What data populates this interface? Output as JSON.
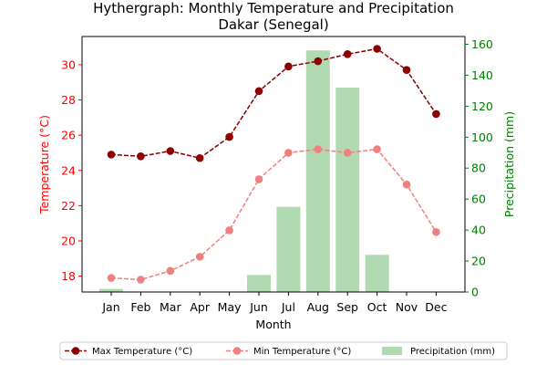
{
  "chart_data": {
    "type": "line",
    "title": "Hythergraph: Monthly Temperature and Precipitation",
    "subtitle": "Dakar (Senegal)",
    "xlabel": "Month",
    "ylabel_left": "Temperature (°C)",
    "ylabel_right": "Precipitation (mm)",
    "categories": [
      "Jan",
      "Feb",
      "Mar",
      "Apr",
      "May",
      "Jun",
      "Jul",
      "Aug",
      "Sep",
      "Oct",
      "Nov",
      "Dec"
    ],
    "ylim_left": [
      17.1,
      31.6
    ],
    "ylim_right": [
      0,
      165
    ],
    "yticks_left": [
      "18",
      "20",
      "22",
      "24",
      "26",
      "28",
      "30"
    ],
    "yticks_right": [
      "0",
      "20",
      "40",
      "60",
      "80",
      "100",
      "120",
      "140",
      "160"
    ],
    "series": [
      {
        "name": "Max Temperature (°C)",
        "axis": "left",
        "kind": "line",
        "style": "dashed",
        "marker": "circle",
        "color": "#8b0000",
        "values": [
          24.9,
          24.8,
          25.1,
          24.7,
          25.9,
          28.5,
          29.9,
          30.2,
          30.6,
          30.9,
          29.7,
          27.2
        ]
      },
      {
        "name": "Min Temperature (°C)",
        "axis": "left",
        "kind": "line",
        "style": "dashed",
        "marker": "circle",
        "color": "#f08080",
        "values": [
          17.9,
          17.8,
          18.3,
          19.1,
          20.6,
          23.5,
          25.0,
          25.2,
          25.0,
          25.2,
          23.2,
          20.5
        ]
      },
      {
        "name": "Precipitation (mm)",
        "axis": "right",
        "kind": "bar",
        "color": "#b2dab2",
        "values": [
          2,
          0,
          0,
          0,
          0,
          11,
          55,
          156,
          132,
          24,
          0,
          0
        ]
      }
    ],
    "legend_position": "bottom",
    "grid": false,
    "colors": {
      "left_axis": "#ff0000",
      "right_axis": "#008000"
    }
  }
}
